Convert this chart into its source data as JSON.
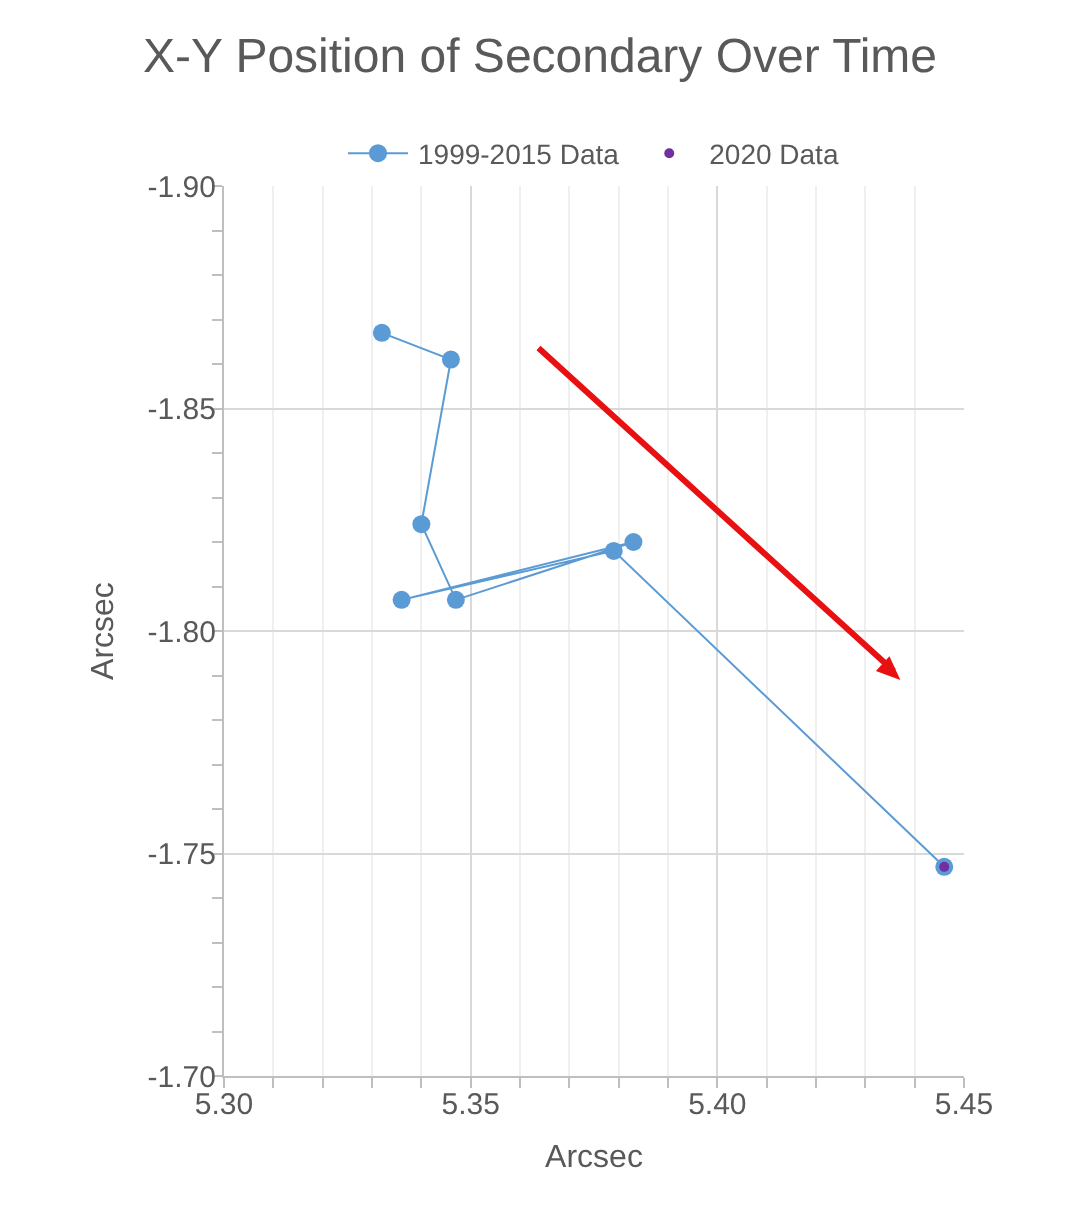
{
  "chart_data": {
    "type": "line",
    "title": "X-Y Position of Secondary Over Time",
    "xlabel": "Arcsec",
    "ylabel": "Arcsec",
    "xlim": [
      5.3,
      5.45
    ],
    "xticks": [
      {
        "value": 5.3,
        "label": "5.30"
      },
      {
        "value": 5.35,
        "label": "5.35"
      },
      {
        "value": 5.4,
        "label": "5.40"
      },
      {
        "value": 5.45,
        "label": "5.45"
      }
    ],
    "ylim": [
      -1.7,
      -1.9
    ],
    "yticks": [
      {
        "value": -1.9,
        "label": "-1.90"
      },
      {
        "value": -1.85,
        "label": "-1.85"
      },
      {
        "value": -1.8,
        "label": "-1.80"
      },
      {
        "value": -1.75,
        "label": "-1.75"
      },
      {
        "value": -1.7,
        "label": "-1.70"
      }
    ],
    "grid": true,
    "legend": "top",
    "marker": "circle",
    "line_style": "solid",
    "series": [
      {
        "name": "1999-2015 Data",
        "color": "#5b9bd5",
        "x": [
          5.332,
          5.346,
          5.34,
          5.347,
          5.383,
          5.336,
          5.379,
          5.446
        ],
        "values": [
          -1.867,
          -1.861,
          -1.824,
          -1.807,
          -1.82,
          -1.807,
          -1.818,
          -1.747
        ]
      },
      {
        "name": "2020 Data",
        "type": "scatter",
        "color": "#7030a0",
        "x": [
          5.446
        ],
        "values": [
          -1.747
        ]
      }
    ]
  }
}
